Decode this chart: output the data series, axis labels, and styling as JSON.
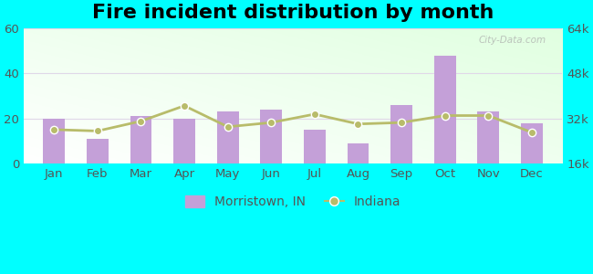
{
  "title": "Fire incident distribution by month",
  "months": [
    "Jan",
    "Feb",
    "Mar",
    "Apr",
    "May",
    "Jun",
    "Jul",
    "Aug",
    "Sep",
    "Oct",
    "Nov",
    "Dec"
  ],
  "bar_values": [
    20,
    11,
    21,
    20,
    23,
    24,
    15,
    9,
    26,
    48,
    23,
    18
  ],
  "bar_color": "#c4a0d8",
  "line_values": [
    28000,
    27500,
    31000,
    36500,
    29000,
    30500,
    33500,
    30000,
    30500,
    33000,
    33000,
    27000
  ],
  "line_color": "#b8bc6a",
  "line_marker": "o",
  "outer_background": "#00ffff",
  "ylim_left": [
    0,
    60
  ],
  "ylim_right": [
    16000,
    64000
  ],
  "yticks_left": [
    0,
    20,
    40,
    60
  ],
  "yticks_right": [
    16000,
    32000,
    48000,
    64000
  ],
  "ytick_labels_right": [
    "16k",
    "32k",
    "48k",
    "64k"
  ],
  "legend_bar_label": "Morristown, IN",
  "legend_line_label": "Indiana",
  "title_fontsize": 16,
  "tick_fontsize": 9.5,
  "legend_fontsize": 10,
  "grid_color": "#e8e8e8",
  "tick_color": "#555555"
}
